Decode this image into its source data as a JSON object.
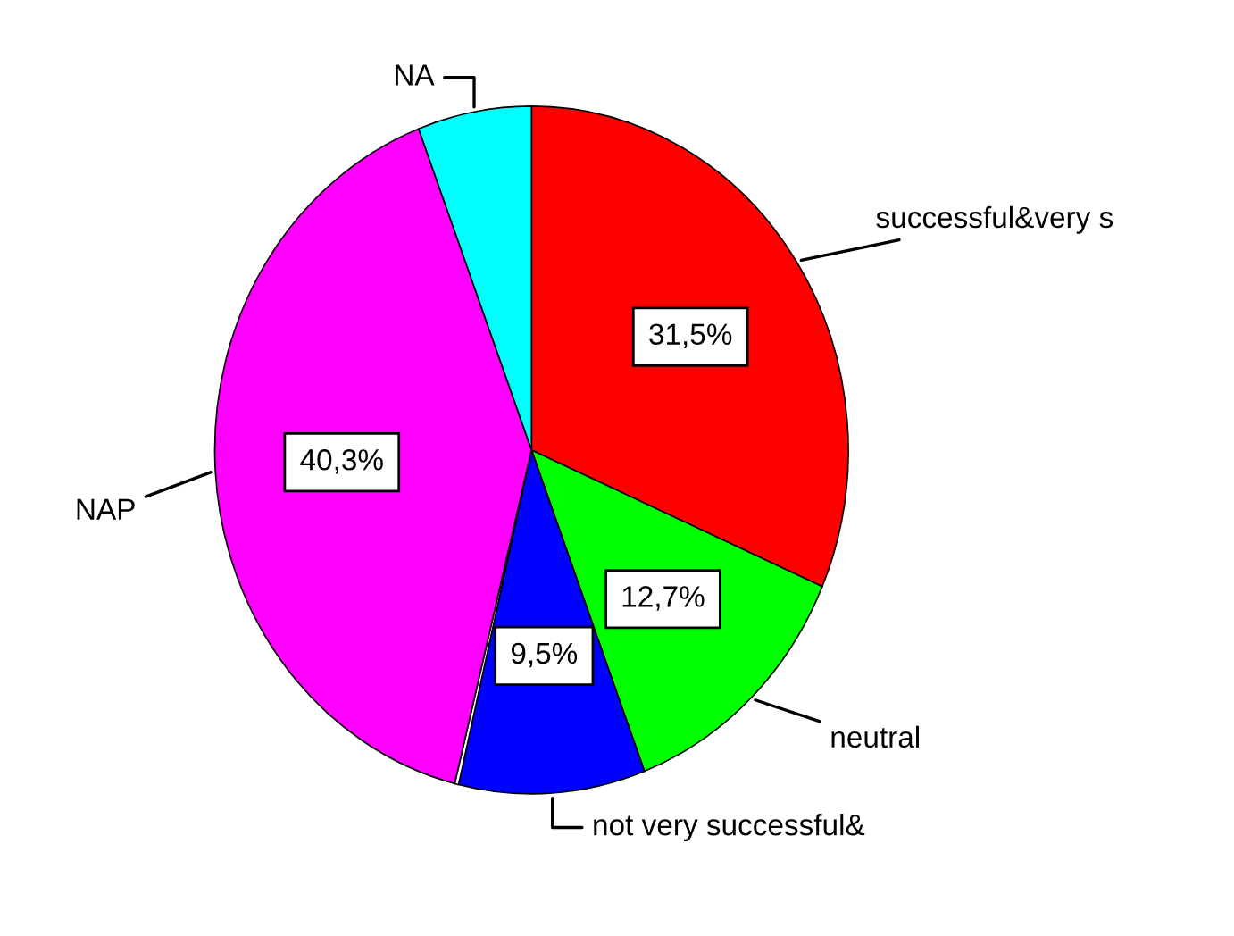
{
  "chart_data": {
    "type": "pie",
    "categories": [
      "successful&very s",
      "neutral",
      "not very successful&",
      null,
      "NAP",
      "NA"
    ],
    "values": [
      31.5,
      12.7,
      9.5,
      0.2,
      40.3,
      5.8
    ],
    "colors": [
      "#ff0000",
      "#00ff00",
      "#0000ff",
      "#ffffff",
      "#ff00ff",
      "#00ffff"
    ],
    "value_labels": [
      "31,5%",
      "12,7%",
      "9,5%",
      null,
      "40,3%",
      null
    ],
    "legend": false
  }
}
